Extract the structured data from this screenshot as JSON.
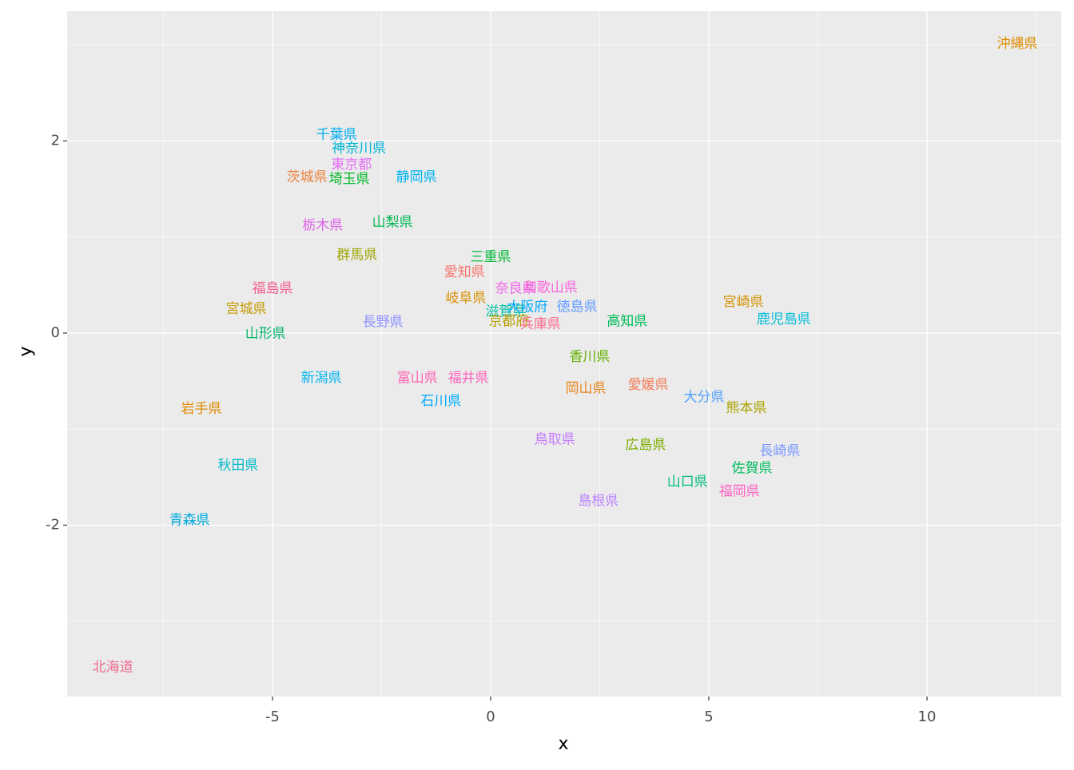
{
  "chart_data": {
    "type": "scatter",
    "x_label": "x",
    "y_label": "y",
    "xlim": [
      -9.707,
      13.077
    ],
    "ylim": [
      -3.784,
      3.351
    ],
    "xticks": [
      -5,
      0,
      5,
      10
    ],
    "yticks": [
      -2,
      0,
      2
    ],
    "x_minor_grid": [
      -7.5,
      -2.5,
      2.5,
      7.5,
      12.5
    ],
    "y_minor_grid": [
      -3,
      -1,
      1,
      3
    ],
    "grid": true,
    "labels": [
      "北海道",
      "青森県",
      "岩手県",
      "宮城県",
      "秋田県",
      "山形県",
      "福島県",
      "茨城県",
      "栃木県",
      "群馬県",
      "埼玉県",
      "千葉県",
      "東京都",
      "神奈川県",
      "新潟県",
      "富山県",
      "石川県",
      "福井県",
      "山梨県",
      "長野県",
      "岐阜県",
      "静岡県",
      "愛知県",
      "三重県",
      "滋賀県",
      "京都府",
      "大阪府",
      "兵庫県",
      "奈良県",
      "和歌山県",
      "鳥取県",
      "島根県",
      "岡山県",
      "広島県",
      "山口県",
      "徳島県",
      "香川県",
      "愛媛県",
      "高知県",
      "福岡県",
      "佐賀県",
      "長崎県",
      "熊本県",
      "大分県",
      "宮崎県",
      "鹿児島県",
      "沖縄県"
    ],
    "x": [
      -8.66,
      -6.9,
      -6.63,
      -5.6,
      -5.79,
      -5.16,
      -5.0,
      -4.21,
      -3.85,
      -3.06,
      -3.24,
      -3.53,
      -3.19,
      -3.02,
      -3.88,
      -1.68,
      -1.14,
      -0.51,
      -2.25,
      -2.47,
      -0.57,
      -1.7,
      -0.6,
      0.0,
      0.35,
      0.42,
      0.84,
      1.14,
      0.57,
      1.37,
      1.47,
      2.47,
      2.18,
      3.55,
      4.51,
      1.98,
      2.27,
      3.61,
      3.13,
      5.7,
      5.99,
      6.63,
      5.86,
      4.89,
      5.79,
      6.72,
      12.07
    ],
    "y": [
      -3.48,
      -1.95,
      -0.79,
      0.25,
      -1.38,
      -0.01,
      0.46,
      1.62,
      1.12,
      0.81,
      1.6,
      2.06,
      1.75,
      1.92,
      -0.47,
      -0.47,
      -0.71,
      -0.47,
      1.15,
      0.11,
      0.36,
      1.62,
      0.63,
      0.79,
      0.22,
      0.12,
      0.27,
      0.09,
      0.46,
      0.47,
      -1.11,
      -1.75,
      -0.58,
      -1.17,
      -1.55,
      0.27,
      -0.25,
      -0.54,
      0.12,
      -1.65,
      -1.41,
      -1.23,
      -0.78,
      -0.67,
      0.32,
      0.14,
      3.01
    ],
    "colors": [
      "#EC6A8F",
      "#00ABDD",
      "#E08B00",
      "#C49A00",
      "#00BBC8",
      "#00B76A",
      "#F35E8A",
      "#EC823C",
      "#DD63E8",
      "#9DA700",
      "#00B92A",
      "#00ADF0",
      "#E36EF6",
      "#00B5D8",
      "#00B4EF",
      "#FF63B6",
      "#00ACFC",
      "#FF62BC",
      "#00B84F",
      "#8F91FF",
      "#D89000",
      "#00B3F0",
      "#F8766D",
      "#00BA38",
      "#00C0A4",
      "#B79F00",
      "#00A9FF",
      "#FF6C91",
      "#F066EA",
      "#FA62DB",
      "#C77CFF",
      "#B983FF",
      "#E7861B",
      "#7CAE00",
      "#00BF7D",
      "#619CFF",
      "#64B200",
      "#F37B59",
      "#00BC59",
      "#FF61C3",
      "#00BD5C",
      "#7997FF",
      "#ABA300",
      "#529EFF",
      "#D39200",
      "#00BCD8",
      "#DE8C00"
    ]
  }
}
